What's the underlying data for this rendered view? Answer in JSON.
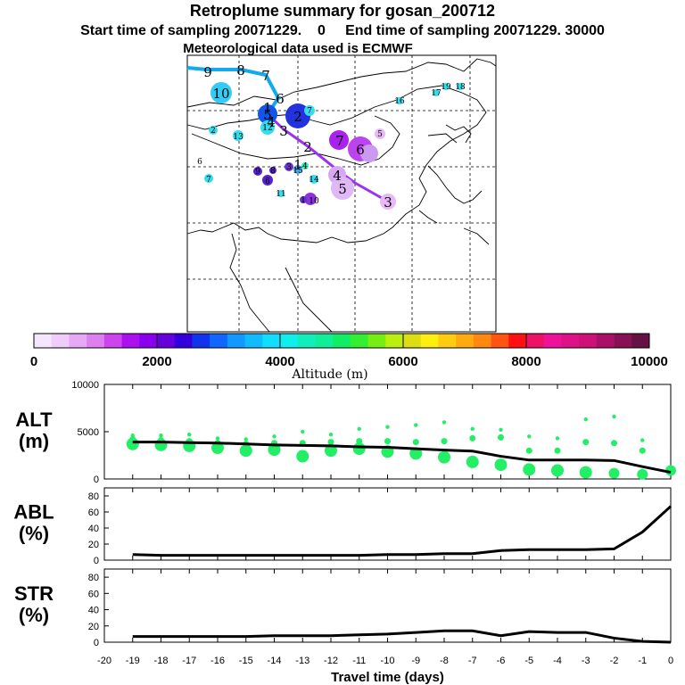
{
  "header": {
    "title": "Retroplume summary for gosan_200712",
    "subtitle": "Start time of sampling 20071229.    0     End time of sampling 20071229. 30000",
    "met_line": "Meteorological data used is ECMWF"
  },
  "colors": {
    "alt_points": "#22ee66",
    "line": "#000000",
    "traj_high": "#00aaee",
    "traj_low": "#8a2be2"
  },
  "colorbar": {
    "colors": [
      "#f5e6ff",
      "#efcdfa",
      "#e7a9f5",
      "#de7fef",
      "#cc44ee",
      "#aa11ee",
      "#8800ee",
      "#6600dd",
      "#3300dd",
      "#1133ee",
      "#1166ff",
      "#1199ff",
      "#11bbff",
      "#11ddff",
      "#11eeee",
      "#11eebb",
      "#11ee99",
      "#11ee66",
      "#33ee33",
      "#77ee11",
      "#bbee11",
      "#dddd11",
      "#ffee11",
      "#ffcc11",
      "#ffaa11",
      "#ff8811",
      "#ff5511",
      "#ff1111",
      "#ee1166",
      "#ee1199",
      "#dd1188",
      "#cc1177",
      "#aa1166",
      "#881155",
      "#661144"
    ],
    "tick_labels": [
      "0",
      "2000",
      "4000",
      "6000",
      "8000",
      "10000"
    ],
    "title": "Altitude  (m)"
  },
  "map": {
    "trajectory_numbers": [
      "9",
      "8",
      "7",
      "6",
      "5",
      "4",
      "3",
      "2",
      "1",
      "10",
      "7",
      "6",
      "5",
      "4",
      "3",
      "2",
      "1",
      "6",
      "7"
    ],
    "cluster_labels": [
      "10",
      "9",
      "8",
      "7",
      "6",
      "5",
      "3",
      "12",
      "13",
      "2",
      "6",
      "7",
      "9",
      "8",
      "3",
      "4",
      "15",
      "14",
      "11",
      "10",
      "1",
      "4",
      "5",
      "6",
      "7",
      "6",
      "5",
      "16",
      "17",
      "19",
      "18"
    ]
  },
  "chart_data": [
    {
      "type": "line",
      "name": "ALT",
      "ylabel": "ALT\n(m)",
      "ylabel_lines": [
        "ALT",
        "(m)"
      ],
      "ylim": [
        0,
        10000
      ],
      "yticks": [
        "10000",
        "5000",
        "0"
      ],
      "xlim": [
        -20,
        0
      ],
      "x": [
        -19,
        -18,
        -17,
        -16,
        -15,
        -14,
        -13,
        -12,
        -11,
        -10,
        -9,
        -8,
        -7,
        -6,
        -5,
        -4,
        -3,
        -2,
        -1,
        0
      ],
      "values": [
        3900,
        3900,
        3850,
        3800,
        3700,
        3600,
        3550,
        3500,
        3400,
        3350,
        3200,
        3050,
        2950,
        2400,
        2000,
        2000,
        2000,
        1950,
        1300,
        700
      ],
      "clusters": [
        {
          "x": -19,
          "y": [
            4600,
            4200,
            3700
          ]
        },
        {
          "x": -18,
          "y": [
            4600,
            4100,
            3600
          ]
        },
        {
          "x": -17,
          "y": [
            4700,
            4000,
            3500
          ]
        },
        {
          "x": -16,
          "y": [
            4300,
            3800,
            3300
          ]
        },
        {
          "x": -15,
          "y": [
            4200,
            3700,
            3000
          ]
        },
        {
          "x": -14,
          "y": [
            4500,
            3800,
            3100
          ]
        },
        {
          "x": -13,
          "y": [
            5000,
            3800,
            2400
          ]
        },
        {
          "x": -12,
          "y": [
            4700,
            3900,
            3000
          ]
        },
        {
          "x": -11,
          "y": [
            5300,
            4000,
            3200
          ]
        },
        {
          "x": -10,
          "y": [
            5500,
            4000,
            2900
          ]
        },
        {
          "x": -9,
          "y": [
            5700,
            3900,
            2700
          ]
        },
        {
          "x": -8,
          "y": [
            6000,
            4000,
            2300
          ]
        },
        {
          "x": -7,
          "y": [
            5300,
            4300,
            1800
          ]
        },
        {
          "x": -6,
          "y": [
            5200,
            4400,
            1500
          ]
        },
        {
          "x": -5,
          "y": [
            4500,
            3000,
            1000
          ]
        },
        {
          "x": -4,
          "y": [
            4300,
            3000,
            900
          ]
        },
        {
          "x": -3,
          "y": [
            6300,
            3900,
            700
          ]
        },
        {
          "x": -2,
          "y": [
            6600,
            3800,
            600
          ]
        },
        {
          "x": -1,
          "y": [
            4100,
            3000,
            500
          ]
        },
        {
          "x": 0,
          "y": [
            900
          ]
        }
      ]
    },
    {
      "type": "line",
      "name": "ABL",
      "ylabel": "ABL\n(%)",
      "ylabel_lines": [
        "ABL",
        "(%)"
      ],
      "ylim": [
        0,
        90
      ],
      "yticks": [
        "80",
        "60",
        "40",
        "20",
        "0"
      ],
      "xlim": [
        -20,
        0
      ],
      "x": [
        -19,
        -18,
        -17,
        -16,
        -15,
        -14,
        -13,
        -12,
        -11,
        -10,
        -9,
        -8,
        -7,
        -6,
        -5,
        -4,
        -3,
        -2,
        -1,
        0
      ],
      "values": [
        7,
        6,
        6,
        6,
        6,
        6,
        6,
        6,
        6,
        7,
        7,
        8,
        8,
        12,
        13,
        13,
        13,
        14,
        35,
        67
      ]
    },
    {
      "type": "line",
      "name": "STR",
      "ylabel": "STR\n(%)",
      "ylabel_lines": [
        "STR",
        "(%)"
      ],
      "ylim": [
        0,
        90
      ],
      "yticks": [
        "80",
        "60",
        "40",
        "20",
        "0"
      ],
      "xlim": [
        -20,
        0
      ],
      "x": [
        -19,
        -18,
        -17,
        -16,
        -15,
        -14,
        -13,
        -12,
        -11,
        -10,
        -9,
        -8,
        -7,
        -6,
        -5,
        -4,
        -3,
        -2,
        -1,
        0
      ],
      "values": [
        7,
        7,
        7,
        7,
        7,
        8,
        8,
        8,
        9,
        10,
        12,
        14,
        14,
        8,
        13,
        12,
        12,
        5,
        1,
        0
      ],
      "xlabel": "Travel time (days)",
      "xticks": [
        "-20",
        "-19",
        "-18",
        "-17",
        "-16",
        "-15",
        "-14",
        "-13",
        "-12",
        "-11",
        "-10",
        "-9",
        "-8",
        "-7",
        "-6",
        "-5",
        "-4",
        "-3",
        "-2",
        "-1",
        "0"
      ]
    }
  ]
}
